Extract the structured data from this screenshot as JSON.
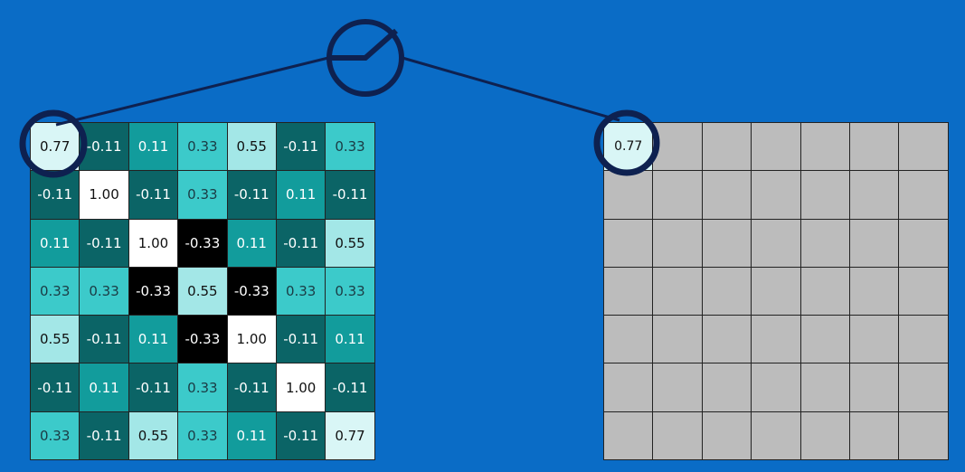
{
  "input_matrix": [
    [
      "0.77",
      "-0.11",
      "0.11",
      "0.33",
      "0.55",
      "-0.11",
      "0.33"
    ],
    [
      "-0.11",
      "1.00",
      "-0.11",
      "0.33",
      "-0.11",
      "0.11",
      "-0.11"
    ],
    [
      "0.11",
      "-0.11",
      "1.00",
      "-0.33",
      "0.11",
      "-0.11",
      "0.55"
    ],
    [
      "0.33",
      "0.33",
      "-0.33",
      "0.55",
      "-0.33",
      "0.33",
      "0.33"
    ],
    [
      "0.55",
      "-0.11",
      "0.11",
      "-0.33",
      "1.00",
      "-0.11",
      "0.11"
    ],
    [
      "-0.11",
      "0.11",
      "-0.11",
      "0.33",
      "-0.11",
      "1.00",
      "-0.11"
    ],
    [
      "0.33",
      "-0.11",
      "0.55",
      "0.33",
      "0.11",
      "-0.11",
      "0.77"
    ]
  ],
  "output_matrix": [
    [
      "0.77",
      "",
      "",
      "",
      "",
      "",
      ""
    ],
    [
      "",
      "",
      "",
      "",
      "",
      "",
      ""
    ],
    [
      "",
      "",
      "",
      "",
      "",
      "",
      ""
    ],
    [
      "",
      "",
      "",
      "",
      "",
      "",
      ""
    ],
    [
      "",
      "",
      "",
      "",
      "",
      "",
      ""
    ],
    [
      "",
      "",
      "",
      "",
      "",
      "",
      ""
    ],
    [
      "",
      "",
      "",
      "",
      "",
      "",
      ""
    ]
  ],
  "colors": {
    "background": "#0a6cc6",
    "outline": "#0e2150",
    "empty_cell": "#bcbcbc",
    "value_colors": {
      "1.00": "#ffffff",
      "0.77": "#d9f6f6",
      "0.55": "#a3e7e7",
      "0.33": "#3ccaca",
      "0.11": "#129c9c",
      "-0.11": "#0b6466",
      "-0.33": "#000000"
    },
    "text_dark": "#111111",
    "text_light": "#ffffff"
  }
}
